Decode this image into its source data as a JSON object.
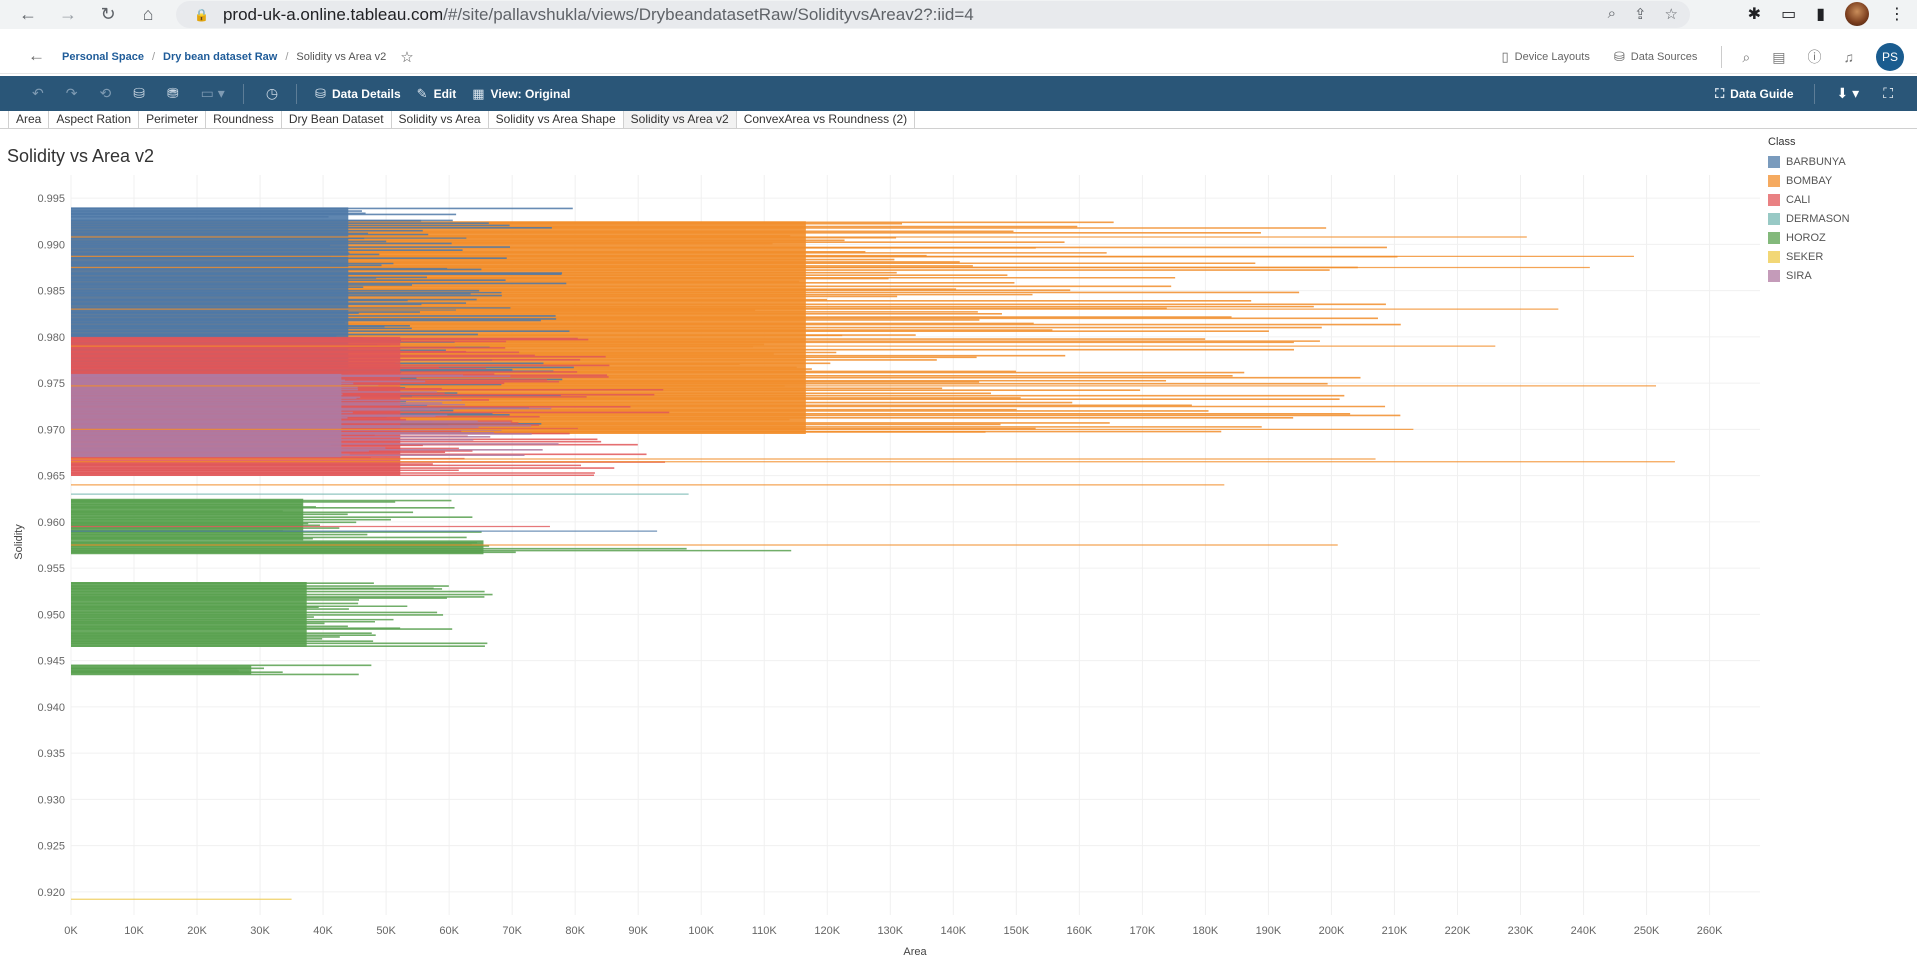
{
  "browser": {
    "url_domain": "prod-uk-a.online.tableau.com",
    "url_rest": "/#/site/pallavshukla/views/DrybeandatasetRaw/SolidityvsAreav2?:iid=4"
  },
  "header": {
    "breadcrumb": [
      "Personal Space",
      "Dry bean dataset Raw",
      "Solidity vs Area v2"
    ],
    "device_layouts": "Device Layouts",
    "data_sources": "Data Sources",
    "avatar_initials": "PS"
  },
  "toolbar": {
    "data_details": "Data Details",
    "edit": "Edit",
    "view_original": "View: Original",
    "data_guide": "Data Guide"
  },
  "sheets": {
    "tabs": [
      "Area",
      "Aspect Ration",
      "Perimeter",
      "Roundness",
      "Dry Bean Dataset",
      "Solidity vs Area",
      "Solidity vs Area Shape",
      "Solidity vs Area v2",
      "ConvexArea vs Roundness (2)"
    ],
    "active": "Solidity vs Area v2"
  },
  "chart_data": {
    "type": "area",
    "title": "Solidity vs Area v2",
    "xlabel": "Area",
    "ylabel": "Solidity",
    "x_ticks": [
      "0K",
      "10K",
      "20K",
      "30K",
      "40K",
      "50K",
      "60K",
      "70K",
      "80K",
      "90K",
      "100K",
      "110K",
      "120K",
      "130K",
      "140K",
      "150K",
      "160K",
      "170K",
      "180K",
      "190K",
      "200K",
      "210K",
      "220K",
      "230K",
      "240K",
      "250K",
      "260K"
    ],
    "y_ticks": [
      "0.995",
      "0.990",
      "0.985",
      "0.980",
      "0.975",
      "0.970",
      "0.965",
      "0.960",
      "0.955",
      "0.950",
      "0.945",
      "0.940",
      "0.935",
      "0.930",
      "0.925",
      "0.920"
    ],
    "xlim": [
      0,
      268000
    ],
    "ylim": [
      0.9175,
      0.9975
    ],
    "grid": true,
    "legend_title": "Class",
    "legend_position": "right",
    "series": [
      {
        "name": "BARBUNYA",
        "color": "#4e79a7"
      },
      {
        "name": "BOMBAY",
        "color": "#f28e2b"
      },
      {
        "name": "CALI",
        "color": "#e15759"
      },
      {
        "name": "DERMASON",
        "color": "#76b7b2"
      },
      {
        "name": "HOROZ",
        "color": "#59a14f"
      },
      {
        "name": "SEKER",
        "color": "#edc948"
      },
      {
        "name": "SIRA",
        "color": "#b07aa1"
      }
    ],
    "bands": [
      {
        "series": "BOMBAY",
        "solidity": [
          0.9695,
          0.9925
        ],
        "area_max": 212000
      },
      {
        "series": "BARBUNYA",
        "solidity": [
          0.97,
          0.994
        ],
        "area_max": 80000
      },
      {
        "series": "CALI",
        "solidity": [
          0.965,
          0.98
        ],
        "area_max": 95000
      },
      {
        "series": "SIRA",
        "solidity": [
          0.967,
          0.976
        ],
        "area_max": 78000
      },
      {
        "series": "HOROZ",
        "solidity": [
          0.958,
          0.9625
        ],
        "area_max": 67000
      },
      {
        "series": "HOROZ",
        "solidity": [
          0.9565,
          0.958
        ],
        "area_max": 119000
      },
      {
        "series": "HOROZ",
        "solidity": [
          0.9465,
          0.9535
        ],
        "area_max": 68000
      },
      {
        "series": "HOROZ",
        "solidity": [
          0.9435,
          0.9445
        ],
        "area_max": 52000
      }
    ],
    "outliers": [
      {
        "series": "BOMBAY",
        "solidity": 0.9747,
        "area": 251500
      },
      {
        "series": "BOMBAY",
        "solidity": 0.9665,
        "area": 254500
      },
      {
        "series": "BOMBAY",
        "solidity": 0.9875,
        "area": 241000
      },
      {
        "series": "BOMBAY",
        "solidity": 0.9887,
        "area": 248000
      },
      {
        "series": "BOMBAY",
        "solidity": 0.9908,
        "area": 231000
      },
      {
        "series": "BOMBAY",
        "solidity": 0.9575,
        "area": 201000
      },
      {
        "series": "BOMBAY",
        "solidity": 0.97,
        "area": 213000
      },
      {
        "series": "BOMBAY",
        "solidity": 0.9668,
        "area": 207000
      },
      {
        "series": "BOMBAY",
        "solidity": 0.964,
        "area": 183000
      },
      {
        "series": "BOMBAY",
        "solidity": 0.979,
        "area": 226000
      },
      {
        "series": "BOMBAY",
        "solidity": 0.983,
        "area": 236000
      },
      {
        "series": "SEKER",
        "solidity": 0.9192,
        "area": 35000
      },
      {
        "series": "BARBUNYA",
        "solidity": 0.959,
        "area": 93000
      },
      {
        "series": "DERMASON",
        "solidity": 0.963,
        "area": 98000
      },
      {
        "series": "CALI",
        "solidity": 0.9595,
        "area": 76000
      }
    ]
  }
}
